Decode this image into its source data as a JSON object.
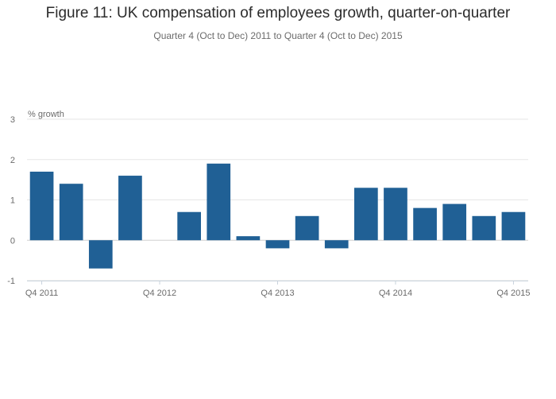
{
  "chart_data": {
    "type": "bar",
    "title": "Figure 11: UK compensation of employees growth, quarter-on-quarter",
    "subtitle": "Quarter 4 (Oct to Dec) 2011 to Quarter 4 (Oct to Dec) 2015",
    "ylabel": "% growth",
    "xlabel": "",
    "ylim": [
      -1,
      3
    ],
    "yticks": [
      -1,
      0,
      1,
      2,
      3
    ],
    "bar_color": "#206095",
    "grid_color": "#e6e6e6",
    "categories": [
      "Q4 2011",
      "Q1 2012",
      "Q2 2012",
      "Q3 2012",
      "Q4 2012",
      "Q1 2013",
      "Q2 2013",
      "Q3 2013",
      "Q4 2013",
      "Q1 2014",
      "Q2 2014",
      "Q3 2014",
      "Q4 2014",
      "Q1 2015",
      "Q2 2015",
      "Q3 2015",
      "Q4 2015"
    ],
    "values": [
      1.7,
      1.4,
      -0.7,
      1.6,
      0.0,
      0.7,
      1.9,
      0.1,
      -0.2,
      0.6,
      -0.2,
      1.3,
      1.3,
      0.8,
      0.9,
      0.6,
      0.7
    ],
    "xtick_labels": [
      "Q4 2011",
      "Q4 2012",
      "Q4 2013",
      "Q4 2014",
      "Q4 2015"
    ],
    "xtick_indices": [
      0,
      4,
      8,
      12,
      16
    ]
  }
}
